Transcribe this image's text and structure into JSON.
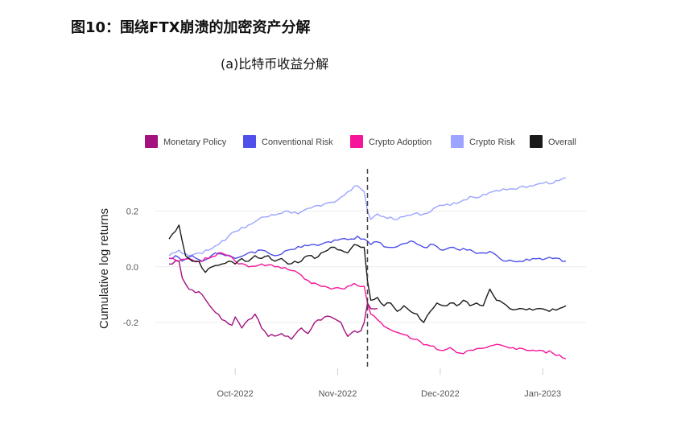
{
  "figure": {
    "title": "图10：围绕FTX崩溃的加密资产分解",
    "subtitle": "(a)比特币收益分解"
  },
  "chart_data": {
    "type": "line",
    "title": "",
    "xlabel": "",
    "ylabel": "Cumulative log returns",
    "x_ticks": [
      "Oct-2022",
      "Nov-2022",
      "Dec-2022",
      "Jan-2023"
    ],
    "x_tick_index": [
      20,
      51,
      82,
      113
    ],
    "y_ticks": [
      0.2,
      0.0,
      -0.2
    ],
    "y_tick_labels": [
      "0.2",
      "0.0",
      "-0.2"
    ],
    "ylim": [
      -0.33,
      0.32
    ],
    "n_points": 121,
    "event_index": 60,
    "grid": true,
    "legend_position": "top",
    "series": [
      {
        "name": "Monetary Policy",
        "color": "#A3117F",
        "anchors": [
          [
            0,
            0.01
          ],
          [
            3,
            0.02
          ],
          [
            4,
            -0.04
          ],
          [
            6,
            -0.08
          ],
          [
            10,
            -0.1
          ],
          [
            13,
            -0.15
          ],
          [
            16,
            -0.19
          ],
          [
            19,
            -0.21
          ],
          [
            20,
            -0.18
          ],
          [
            22,
            -0.22
          ],
          [
            24,
            -0.19
          ],
          [
            26,
            -0.17
          ],
          [
            28,
            -0.22
          ],
          [
            30,
            -0.25
          ],
          [
            34,
            -0.24
          ],
          [
            37,
            -0.26
          ],
          [
            40,
            -0.22
          ],
          [
            42,
            -0.24
          ],
          [
            44,
            -0.2
          ],
          [
            47,
            -0.18
          ],
          [
            49,
            -0.18
          ],
          [
            52,
            -0.2
          ],
          [
            54,
            -0.25
          ],
          [
            56,
            -0.23
          ],
          [
            58,
            -0.23
          ],
          [
            59,
            -0.2
          ],
          [
            60,
            -0.13
          ],
          [
            61,
            -0.15
          ],
          [
            63,
            -0.15
          ]
        ],
        "end_at": 63
      },
      {
        "name": "Conventional Risk",
        "color": "#4F4FEB",
        "anchors": [
          [
            0,
            0.03
          ],
          [
            2,
            0.04
          ],
          [
            4,
            0.02
          ],
          [
            7,
            0.04
          ],
          [
            10,
            0.02
          ],
          [
            14,
            0.05
          ],
          [
            17,
            0.04
          ],
          [
            20,
            0.03
          ],
          [
            24,
            0.05
          ],
          [
            28,
            0.06
          ],
          [
            32,
            0.04
          ],
          [
            36,
            0.06
          ],
          [
            40,
            0.07
          ],
          [
            44,
            0.08
          ],
          [
            48,
            0.09
          ],
          [
            52,
            0.1
          ],
          [
            55,
            0.1
          ],
          [
            57,
            0.11
          ],
          [
            59,
            0.1
          ],
          [
            61,
            0.08
          ],
          [
            63,
            0.09
          ],
          [
            66,
            0.07
          ],
          [
            70,
            0.08
          ],
          [
            74,
            0.09
          ],
          [
            77,
            0.07
          ],
          [
            80,
            0.08
          ],
          [
            83,
            0.06
          ],
          [
            86,
            0.07
          ],
          [
            90,
            0.06
          ],
          [
            94,
            0.05
          ],
          [
            98,
            0.05
          ],
          [
            100,
            0.03
          ],
          [
            102,
            0.02
          ],
          [
            106,
            0.02
          ],
          [
            110,
            0.03
          ],
          [
            114,
            0.03
          ],
          [
            118,
            0.03
          ],
          [
            120,
            0.02
          ]
        ]
      },
      {
        "name": "Crypto Adoption",
        "color": "#F5149A",
        "anchors": [
          [
            0,
            0.03
          ],
          [
            3,
            0.02
          ],
          [
            6,
            0.03
          ],
          [
            9,
            0.02
          ],
          [
            12,
            0.03
          ],
          [
            15,
            0.05
          ],
          [
            18,
            0.04
          ],
          [
            20,
            0.02
          ],
          [
            24,
            0.0
          ],
          [
            28,
            0.01
          ],
          [
            32,
            0.0
          ],
          [
            36,
            -0.01
          ],
          [
            40,
            -0.03
          ],
          [
            43,
            -0.06
          ],
          [
            46,
            -0.07
          ],
          [
            49,
            -0.08
          ],
          [
            53,
            -0.08
          ],
          [
            56,
            -0.06
          ],
          [
            59,
            -0.07
          ],
          [
            60,
            -0.13
          ],
          [
            61,
            -0.17
          ],
          [
            63,
            -0.19
          ],
          [
            66,
            -0.22
          ],
          [
            70,
            -0.24
          ],
          [
            74,
            -0.26
          ],
          [
            78,
            -0.28
          ],
          [
            82,
            -0.3
          ],
          [
            85,
            -0.29
          ],
          [
            88,
            -0.31
          ],
          [
            92,
            -0.3
          ],
          [
            96,
            -0.29
          ],
          [
            100,
            -0.28
          ],
          [
            104,
            -0.29
          ],
          [
            108,
            -0.3
          ],
          [
            112,
            -0.3
          ],
          [
            116,
            -0.31
          ],
          [
            120,
            -0.33
          ]
        ]
      },
      {
        "name": "Crypto Risk",
        "color": "#9CA4FF",
        "anchors": [
          [
            0,
            0.04
          ],
          [
            3,
            0.06
          ],
          [
            6,
            0.04
          ],
          [
            9,
            0.05
          ],
          [
            12,
            0.06
          ],
          [
            15,
            0.08
          ],
          [
            18,
            0.11
          ],
          [
            21,
            0.13
          ],
          [
            24,
            0.15
          ],
          [
            27,
            0.17
          ],
          [
            30,
            0.18
          ],
          [
            33,
            0.19
          ],
          [
            36,
            0.2
          ],
          [
            39,
            0.19
          ],
          [
            42,
            0.21
          ],
          [
            45,
            0.22
          ],
          [
            48,
            0.23
          ],
          [
            51,
            0.24
          ],
          [
            54,
            0.27
          ],
          [
            56,
            0.29
          ],
          [
            58,
            0.28
          ],
          [
            59,
            0.27
          ],
          [
            60,
            0.2
          ],
          [
            61,
            0.17
          ],
          [
            63,
            0.19
          ],
          [
            65,
            0.18
          ],
          [
            68,
            0.17
          ],
          [
            71,
            0.18
          ],
          [
            74,
            0.19
          ],
          [
            77,
            0.19
          ],
          [
            80,
            0.21
          ],
          [
            83,
            0.22
          ],
          [
            86,
            0.23
          ],
          [
            89,
            0.24
          ],
          [
            92,
            0.25
          ],
          [
            95,
            0.26
          ],
          [
            98,
            0.27
          ],
          [
            101,
            0.28
          ],
          [
            104,
            0.28
          ],
          [
            107,
            0.29
          ],
          [
            110,
            0.29
          ],
          [
            113,
            0.3
          ],
          [
            116,
            0.3
          ],
          [
            118,
            0.31
          ],
          [
            120,
            0.32
          ]
        ]
      },
      {
        "name": "Overall",
        "color": "#1A1A1A",
        "anchors": [
          [
            0,
            0.1
          ],
          [
            3,
            0.15
          ],
          [
            5,
            0.04
          ],
          [
            7,
            0.02
          ],
          [
            9,
            0.02
          ],
          [
            11,
            -0.02
          ],
          [
            13,
            0.0
          ],
          [
            16,
            0.01
          ],
          [
            18,
            0.02
          ],
          [
            20,
            0.01
          ],
          [
            22,
            0.03
          ],
          [
            24,
            0.02
          ],
          [
            26,
            0.04
          ],
          [
            28,
            0.03
          ],
          [
            30,
            0.04
          ],
          [
            32,
            0.02
          ],
          [
            34,
            0.03
          ],
          [
            36,
            0.01
          ],
          [
            38,
            0.02
          ],
          [
            40,
            0.02
          ],
          [
            42,
            0.04
          ],
          [
            44,
            0.03
          ],
          [
            46,
            0.05
          ],
          [
            48,
            0.06
          ],
          [
            50,
            0.07
          ],
          [
            52,
            0.06
          ],
          [
            54,
            0.05
          ],
          [
            56,
            0.08
          ],
          [
            58,
            0.07
          ],
          [
            59,
            0.07
          ],
          [
            60,
            -0.05
          ],
          [
            61,
            -0.12
          ],
          [
            63,
            -0.11
          ],
          [
            65,
            -0.14
          ],
          [
            67,
            -0.13
          ],
          [
            69,
            -0.16
          ],
          [
            71,
            -0.14
          ],
          [
            73,
            -0.16
          ],
          [
            75,
            -0.17
          ],
          [
            77,
            -0.2
          ],
          [
            79,
            -0.16
          ],
          [
            81,
            -0.13
          ],
          [
            83,
            -0.14
          ],
          [
            85,
            -0.13
          ],
          [
            87,
            -0.14
          ],
          [
            89,
            -0.12
          ],
          [
            91,
            -0.14
          ],
          [
            93,
            -0.13
          ],
          [
            95,
            -0.14
          ],
          [
            97,
            -0.08
          ],
          [
            99,
            -0.12
          ],
          [
            101,
            -0.13
          ],
          [
            103,
            -0.15
          ],
          [
            106,
            -0.15
          ],
          [
            109,
            -0.15
          ],
          [
            112,
            -0.15
          ],
          [
            115,
            -0.16
          ],
          [
            118,
            -0.15
          ],
          [
            120,
            -0.14
          ]
        ]
      }
    ]
  }
}
